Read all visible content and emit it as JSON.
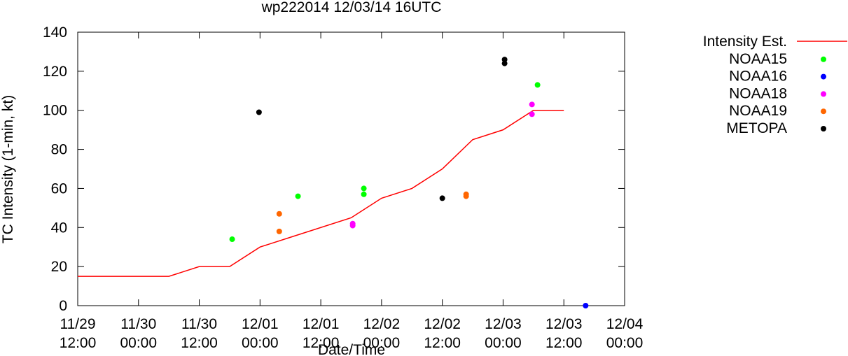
{
  "chart_data": {
    "type": "scatter",
    "title": "wp222014 12/03/14 16UTC",
    "xlabel": "Date/Time",
    "ylabel": "TC Intensity (1-min, kt)",
    "xlim": [
      0,
      108
    ],
    "ylim": [
      0,
      140
    ],
    "x_units": "hours since 11/29 12:00",
    "x_ticks": [
      {
        "value": 0,
        "line1": "11/29",
        "line2": "12:00"
      },
      {
        "value": 12,
        "line1": "11/30",
        "line2": "00:00"
      },
      {
        "value": 24,
        "line1": "11/30",
        "line2": "12:00"
      },
      {
        "value": 36,
        "line1": "12/01",
        "line2": "00:00"
      },
      {
        "value": 48,
        "line1": "12/01",
        "line2": "12:00"
      },
      {
        "value": 60,
        "line1": "12/02",
        "line2": "00:00"
      },
      {
        "value": 72,
        "line1": "12/02",
        "line2": "12:00"
      },
      {
        "value": 84,
        "line1": "12/03",
        "line2": "00:00"
      },
      {
        "value": 96,
        "line1": "12/03",
        "line2": "12:00"
      },
      {
        "value": 108,
        "line1": "12/04",
        "line2": "00:00"
      }
    ],
    "y_ticks": [
      0,
      20,
      40,
      60,
      80,
      100,
      120,
      140
    ],
    "series": [
      {
        "name": "Intensity Est.",
        "kind": "line",
        "color": "#ff0000",
        "points": [
          [
            0,
            15
          ],
          [
            18,
            15
          ],
          [
            24,
            20
          ],
          [
            30,
            20
          ],
          [
            36,
            30
          ],
          [
            42,
            35
          ],
          [
            54,
            45
          ],
          [
            60,
            55
          ],
          [
            66,
            60
          ],
          [
            72,
            70
          ],
          [
            78,
            85
          ],
          [
            84,
            90
          ],
          [
            90,
            100
          ],
          [
            96,
            100
          ]
        ]
      },
      {
        "name": "NOAA15",
        "kind": "points",
        "color": "#00ff00",
        "points": [
          [
            30.5,
            34
          ],
          [
            43.5,
            56
          ],
          [
            56.5,
            60
          ],
          [
            56.5,
            57
          ],
          [
            90.8,
            113
          ]
        ]
      },
      {
        "name": "NOAA16",
        "kind": "points",
        "color": "#0000ff",
        "points": [
          [
            100.3,
            0
          ]
        ]
      },
      {
        "name": "NOAA18",
        "kind": "points",
        "color": "#ff00ff",
        "points": [
          [
            54.3,
            42
          ],
          [
            54.3,
            41
          ],
          [
            89.7,
            103
          ],
          [
            89.7,
            98
          ]
        ]
      },
      {
        "name": "NOAA19",
        "kind": "points",
        "color": "#ff6600",
        "points": [
          [
            39.8,
            47
          ],
          [
            39.8,
            38
          ],
          [
            76.7,
            57
          ],
          [
            76.7,
            56
          ]
        ]
      },
      {
        "name": "METOPA",
        "kind": "points",
        "color": "#000000",
        "points": [
          [
            35.8,
            99
          ],
          [
            72,
            55
          ],
          [
            84.3,
            126
          ],
          [
            84.3,
            124
          ]
        ]
      }
    ]
  }
}
